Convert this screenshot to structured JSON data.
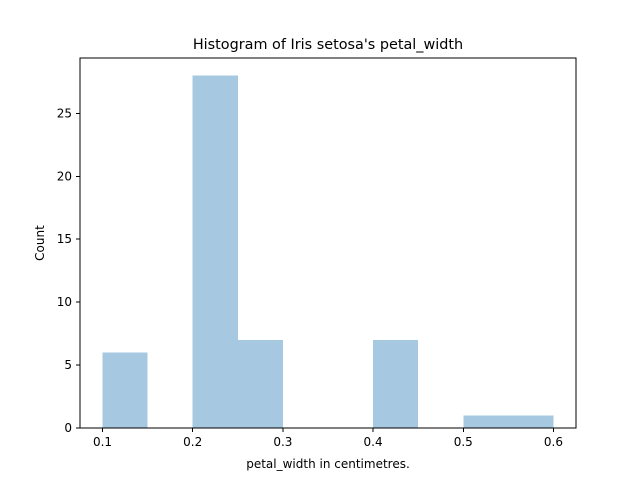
{
  "chart_data": {
    "type": "bar",
    "title": "Histogram of Iris setosa's petal_width",
    "xlabel": "petal_width in centimetres.",
    "ylabel": "Count",
    "bin_edges": [
      0.1,
      0.15,
      0.2,
      0.25,
      0.3,
      0.35,
      0.4,
      0.45,
      0.5,
      0.55,
      0.6
    ],
    "values": [
      6,
      0,
      28,
      7,
      0,
      0,
      7,
      0,
      1,
      1
    ],
    "xlim": [
      0.075,
      0.625
    ],
    "ylim": [
      0,
      29.4
    ],
    "xticks": [
      0.1,
      0.2,
      0.3,
      0.4,
      0.5,
      0.6
    ],
    "xtick_labels": [
      "0.1",
      "0.2",
      "0.3",
      "0.4",
      "0.5",
      "0.6"
    ],
    "yticks": [
      0,
      5,
      10,
      15,
      20,
      25
    ],
    "ytick_labels": [
      "0",
      "5",
      "10",
      "15",
      "20",
      "25"
    ],
    "bar_color": "#a6c8e0",
    "grid": false,
    "legend": "none"
  }
}
